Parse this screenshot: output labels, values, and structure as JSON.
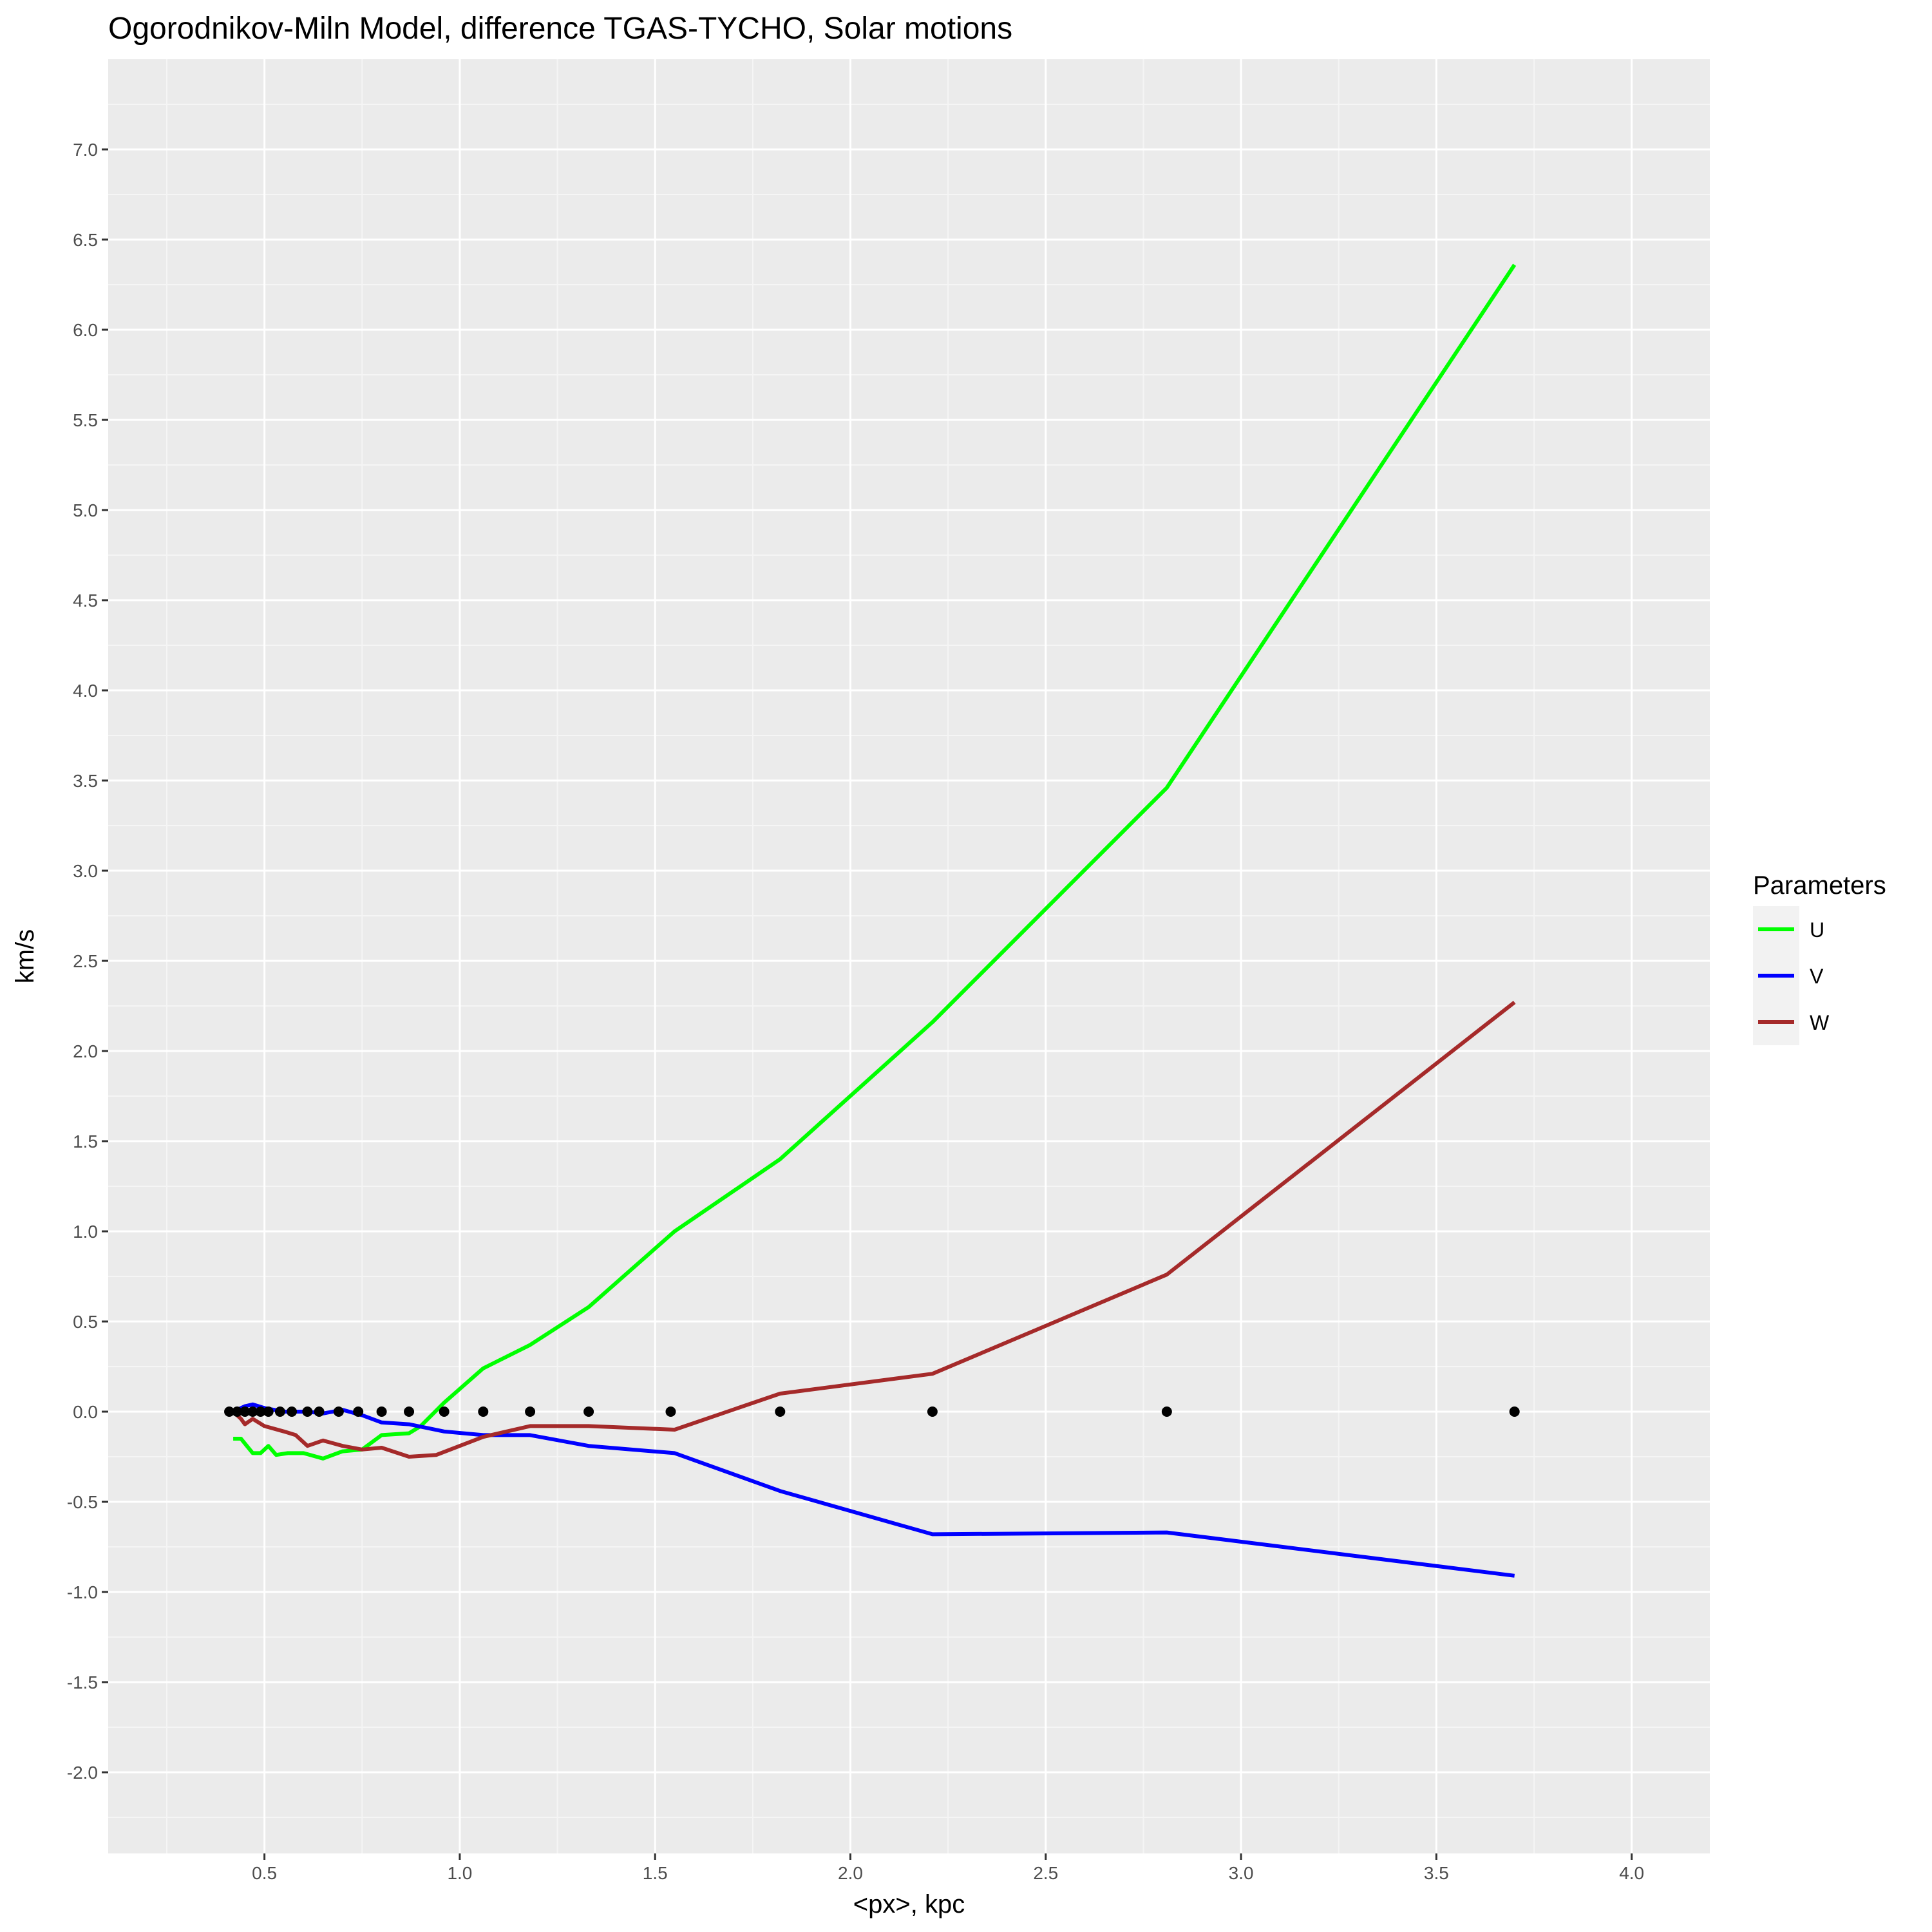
{
  "chart_data": {
    "type": "line",
    "title": "Ogorodnikov-Miln Model, difference TGAS-TYCHO, Solar motions",
    "xlabel": "<px>, kpc",
    "ylabel": "km/s",
    "xlim": [
      0.1,
      4.2
    ],
    "ylim": [
      -2.45,
      7.5
    ],
    "x_ticks": [
      0.5,
      1.0,
      1.5,
      2.0,
      2.5,
      3.0,
      3.5,
      4.0
    ],
    "x_tick_labels": [
      "0.5",
      "1.0",
      "1.5",
      "2.0",
      "2.5",
      "3.0",
      "3.5",
      "4.0"
    ],
    "y_ticks": [
      -2.0,
      -1.5,
      -1.0,
      -0.5,
      0.0,
      0.5,
      1.0,
      1.5,
      2.0,
      2.5,
      3.0,
      3.5,
      4.0,
      4.5,
      5.0,
      5.5,
      6.0,
      6.5,
      7.0
    ],
    "y_tick_labels": [
      "-2.0",
      "-1.5",
      "-1.0",
      "-0.5",
      "0.0",
      "0.5",
      "1.0",
      "1.5",
      "2.0",
      "2.5",
      "3.0",
      "3.5",
      "4.0",
      "4.5",
      "5.0",
      "5.5",
      "6.0",
      "6.5",
      "7.0"
    ],
    "grid": true,
    "legend": {
      "title": "Parameters",
      "position": "right"
    },
    "series": [
      {
        "name": "U",
        "color": "#00ff00",
        "points": [
          [
            0.42,
            -0.15
          ],
          [
            0.44,
            -0.15
          ],
          [
            0.47,
            -0.23
          ],
          [
            0.49,
            -0.23
          ],
          [
            0.51,
            -0.19
          ],
          [
            0.53,
            -0.24
          ],
          [
            0.56,
            -0.23
          ],
          [
            0.6,
            -0.23
          ],
          [
            0.65,
            -0.26
          ],
          [
            0.7,
            -0.22
          ],
          [
            0.75,
            -0.21
          ],
          [
            0.8,
            -0.13
          ],
          [
            0.87,
            -0.12
          ],
          [
            0.9,
            -0.08
          ],
          [
            0.96,
            0.05
          ],
          [
            1.06,
            0.24
          ],
          [
            1.18,
            0.37
          ],
          [
            1.33,
            0.58
          ],
          [
            1.55,
            1.0
          ],
          [
            1.82,
            1.4
          ],
          [
            2.21,
            2.16
          ],
          [
            2.81,
            3.46
          ],
          [
            3.7,
            6.36
          ]
        ]
      },
      {
        "name": "V",
        "color": "#0000ff",
        "points": [
          [
            0.42,
            0.0
          ],
          [
            0.45,
            0.03
          ],
          [
            0.47,
            0.04
          ],
          [
            0.5,
            0.02
          ],
          [
            0.55,
            0.0
          ],
          [
            0.61,
            0.0
          ],
          [
            0.65,
            -0.01
          ],
          [
            0.7,
            0.01
          ],
          [
            0.75,
            -0.02
          ],
          [
            0.8,
            -0.06
          ],
          [
            0.87,
            -0.07
          ],
          [
            0.96,
            -0.11
          ],
          [
            1.06,
            -0.13
          ],
          [
            1.18,
            -0.13
          ],
          [
            1.33,
            -0.19
          ],
          [
            1.55,
            -0.23
          ],
          [
            1.82,
            -0.44
          ],
          [
            2.21,
            -0.68
          ],
          [
            2.81,
            -0.67
          ],
          [
            3.7,
            -0.91
          ]
        ]
      },
      {
        "name": "W",
        "color": "#a52a2a",
        "points": [
          [
            0.42,
            0.0
          ],
          [
            0.44,
            -0.04
          ],
          [
            0.45,
            -0.07
          ],
          [
            0.47,
            -0.04
          ],
          [
            0.5,
            -0.08
          ],
          [
            0.55,
            -0.11
          ],
          [
            0.58,
            -0.13
          ],
          [
            0.61,
            -0.19
          ],
          [
            0.65,
            -0.16
          ],
          [
            0.7,
            -0.19
          ],
          [
            0.75,
            -0.21
          ],
          [
            0.8,
            -0.2
          ],
          [
            0.87,
            -0.25
          ],
          [
            0.94,
            -0.24
          ],
          [
            1.06,
            -0.14
          ],
          [
            1.18,
            -0.08
          ],
          [
            1.33,
            -0.08
          ],
          [
            1.55,
            -0.1
          ],
          [
            1.82,
            0.1
          ],
          [
            2.21,
            0.21
          ],
          [
            2.81,
            0.76
          ],
          [
            3.7,
            2.27
          ]
        ]
      }
    ],
    "points": {
      "color": "#000000",
      "x": [
        0.41,
        0.43,
        0.45,
        0.47,
        0.49,
        0.51,
        0.54,
        0.57,
        0.61,
        0.64,
        0.69,
        0.74,
        0.8,
        0.87,
        0.96,
        1.06,
        1.18,
        1.33,
        1.54,
        1.82,
        2.21,
        2.81,
        3.7
      ],
      "y": [
        0.0,
        0.0,
        0.0,
        0.0,
        0.0,
        0.0,
        0.0,
        0.0,
        0.0,
        0.0,
        0.0,
        0.0,
        0.0,
        0.0,
        0.0,
        0.0,
        0.0,
        0.0,
        0.0,
        0.0,
        0.0,
        0.0,
        0.0
      ]
    },
    "colors": {
      "panel": "#ebebeb",
      "grid_major": "#ffffff",
      "grid_minor": "#f5f5f5"
    }
  }
}
